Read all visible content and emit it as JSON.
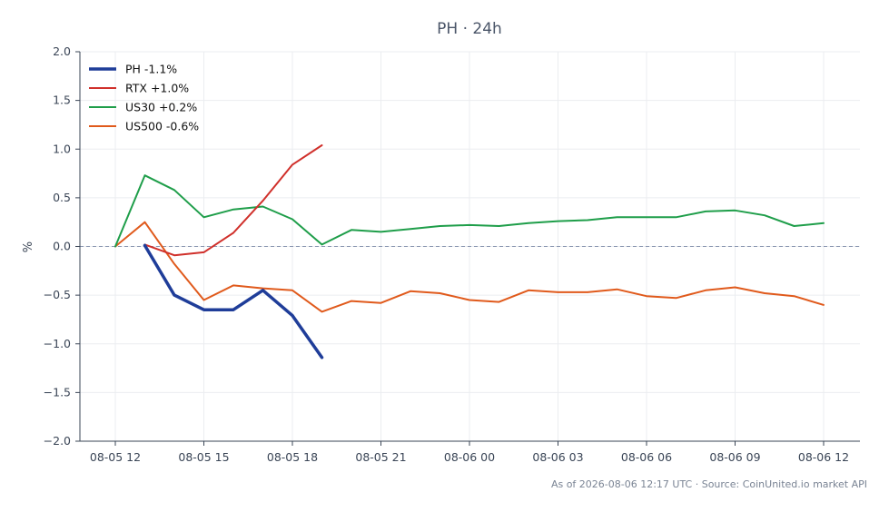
{
  "footer": "As of 2026-08-06 12:17 UTC · Source: CoinUnited.io market API",
  "chart_data": {
    "type": "line",
    "title": "PH · 24h",
    "xlabel": "",
    "ylabel": "%",
    "ylim": [
      -2.0,
      2.0
    ],
    "yticks": [
      "2.0",
      "1.5",
      "1.0",
      "0.5",
      "0.0",
      "−0.5",
      "−1.0",
      "−1.5",
      "−2.0"
    ],
    "xticks": [
      "08-05 12",
      "08-05 15",
      "08-05 18",
      "08-05 21",
      "08-06 00",
      "08-06 03",
      "08-06 06",
      "08-06 09",
      "08-06 12"
    ],
    "x": [
      "08-05 12",
      "08-05 13",
      "08-05 14",
      "08-05 15",
      "08-05 16",
      "08-05 17",
      "08-05 18",
      "08-05 19",
      "08-05 20",
      "08-05 21",
      "08-05 22",
      "08-05 23",
      "08-06 00",
      "08-06 01",
      "08-06 02",
      "08-06 03",
      "08-06 04",
      "08-06 05",
      "08-06 06",
      "08-06 07",
      "08-06 08",
      "08-06 09",
      "08-06 10",
      "08-06 11",
      "08-06 12"
    ],
    "grid": true,
    "zero_line": true,
    "legend_position": "top-left",
    "series": [
      {
        "name": "PH -1.1%",
        "color": "#1f3d99",
        "width": 3.5,
        "values": [
          null,
          0.01,
          -0.5,
          -0.65,
          -0.65,
          -0.45,
          -0.71,
          -1.14,
          null,
          null,
          null,
          null,
          null,
          null,
          null,
          null,
          null,
          null,
          null,
          null,
          null,
          null,
          null,
          null,
          null
        ]
      },
      {
        "name": "RTX +1.0%",
        "color": "#d0302b",
        "width": 2,
        "values": [
          null,
          0.02,
          -0.09,
          -0.06,
          0.14,
          0.47,
          0.84,
          1.04,
          null,
          null,
          null,
          null,
          null,
          null,
          null,
          null,
          null,
          null,
          null,
          null,
          null,
          null,
          null,
          null,
          null
        ]
      },
      {
        "name": "US30 +0.2%",
        "color": "#1f9e4a",
        "width": 2,
        "values": [
          0.0,
          0.73,
          0.58,
          0.3,
          0.38,
          0.41,
          0.28,
          0.02,
          0.17,
          0.15,
          0.18,
          0.21,
          0.22,
          0.21,
          0.24,
          0.26,
          0.27,
          0.3,
          0.3,
          0.3,
          0.36,
          0.37,
          0.32,
          0.21,
          0.24
        ]
      },
      {
        "name": "US500 -0.6%",
        "color": "#e05a1c",
        "width": 2,
        "values": [
          0.0,
          0.25,
          -0.18,
          -0.55,
          -0.4,
          -0.43,
          -0.45,
          -0.67,
          -0.56,
          -0.58,
          -0.46,
          -0.48,
          -0.55,
          -0.57,
          -0.45,
          -0.47,
          -0.47,
          -0.44,
          -0.51,
          -0.53,
          -0.45,
          -0.42,
          -0.48,
          -0.51,
          -0.6
        ]
      }
    ]
  }
}
